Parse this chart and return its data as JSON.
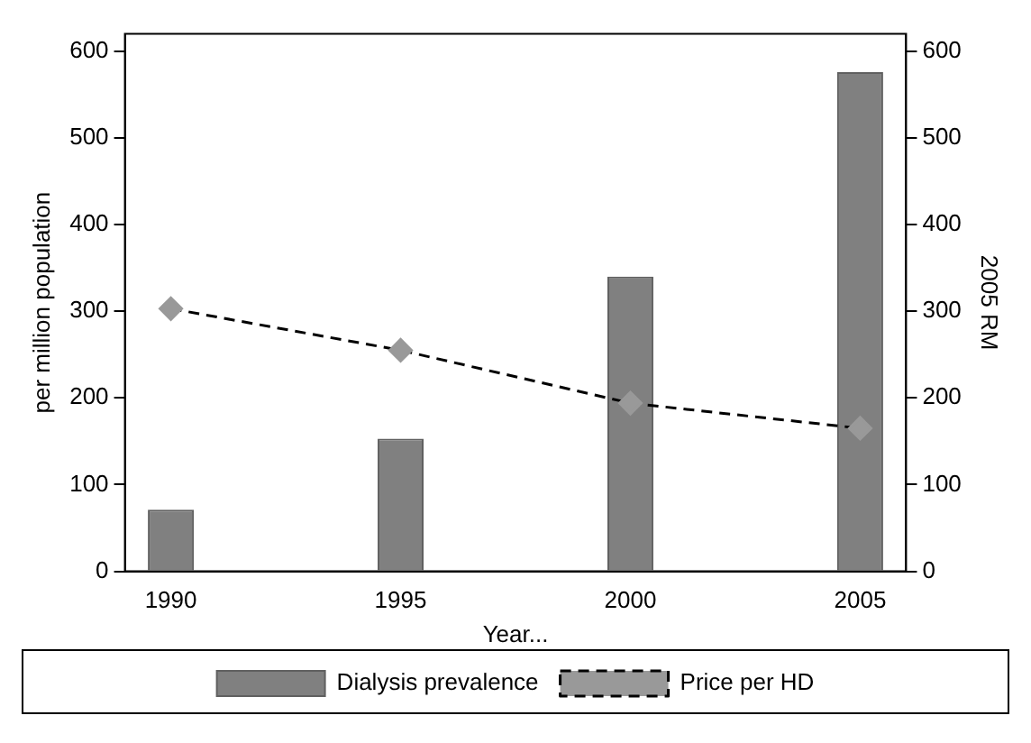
{
  "chart_data": {
    "type": "bar",
    "xlabel": "Year...",
    "ylabel": "per million population",
    "y2label": "2005 RM",
    "x": [
      1990,
      1995,
      2000,
      2005
    ],
    "series": [
      {
        "name": "Dialysis prevalence",
        "color": "#808080",
        "values": [
          71,
          153,
          340,
          576
        ]
      },
      {
        "name": "Price per HD",
        "type": "line",
        "axis": "y2",
        "color": "#000000",
        "marker": "diamond",
        "line_style": "dashed",
        "values": [
          303,
          255,
          194,
          165
        ]
      }
    ],
    "xlim": [
      1989,
      2006
    ],
    "xticks": [
      1990,
      1995,
      2000,
      2005
    ],
    "ylim": [
      0,
      620
    ],
    "yticks": [
      0,
      100,
      200,
      300,
      400,
      500,
      600
    ],
    "y2lim": [
      0,
      620
    ],
    "y2ticks": [
      0,
      100,
      200,
      300,
      400,
      500,
      600
    ],
    "grid": false,
    "legend": "bottom"
  }
}
